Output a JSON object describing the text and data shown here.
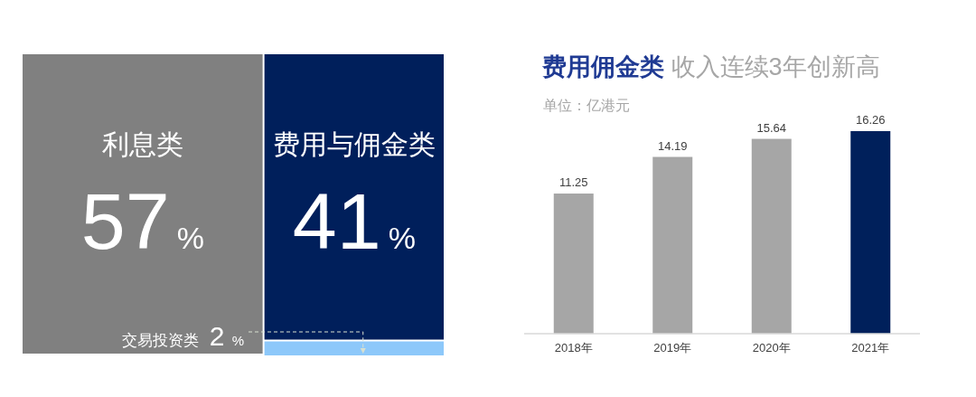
{
  "chart_data": [
    {
      "type": "other",
      "categories": [
        "利息类",
        "费用与佣金类",
        "交易投资类"
      ],
      "values": [
        57,
        41,
        2
      ],
      "colors": [
        "#808080",
        "#001f5b",
        "#8dc8fa"
      ],
      "value_labels": [
        "57%",
        "41%",
        "2 %"
      ]
    },
    {
      "type": "bar",
      "title": "费用佣金类 收入连续3年创新高",
      "subtitle": "单位：亿港元",
      "categories": [
        "2018年",
        "2019年",
        "2020年",
        "2021年"
      ],
      "values": [
        11.25,
        14.19,
        15.64,
        16.26
      ],
      "colors": [
        "#a6a6a6",
        "#a6a6a6",
        "#a6a6a6",
        "#00205b"
      ],
      "data_labels": true
    }
  ]
}
